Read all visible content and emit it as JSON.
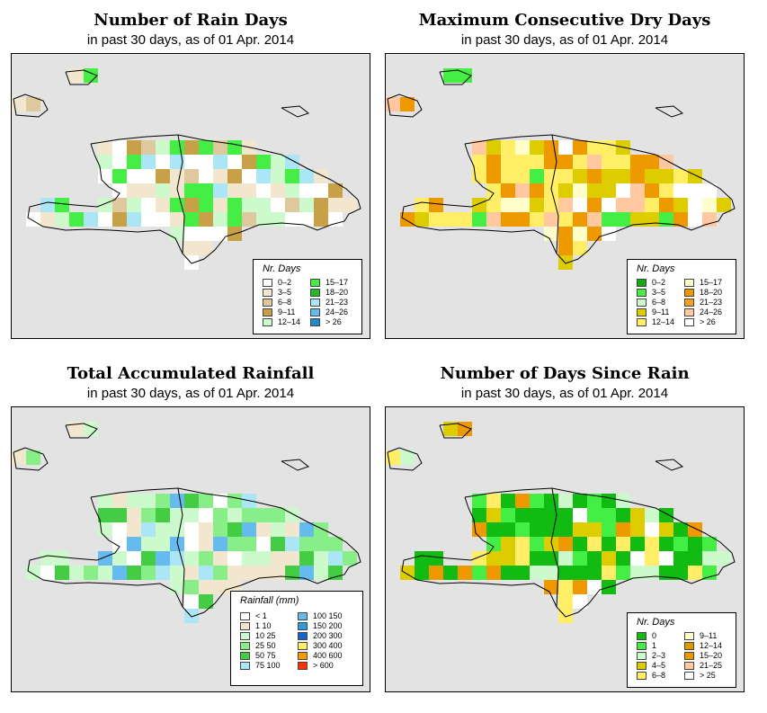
{
  "panels": [
    {
      "id": "rain-days",
      "title": "Number of Rain Days",
      "subtitle": "in past 30 days, as of  01 Apr. 2014",
      "legend": {
        "title": "Nr. Days",
        "items": [
          {
            "label": "0–2",
            "color": "#ffffff"
          },
          {
            "label": "3–5",
            "color": "#f2e6cf"
          },
          {
            "label": "6–8",
            "color": "#e0c89e"
          },
          {
            "label": "9–11",
            "color": "#c8a048"
          },
          {
            "label": "12–14",
            "color": "#ccfacc"
          },
          {
            "label": "15–17",
            "color": "#44ee44"
          },
          {
            "label": "18–20",
            "color": "#22bb22"
          },
          {
            "label": "21–23",
            "color": "#aae6f6"
          },
          {
            "label": "24–26",
            "color": "#66bbee"
          },
          {
            "label": "> 26",
            "color": "#2288cc"
          }
        ]
      }
    },
    {
      "id": "dry-days",
      "title": "Maximum Consecutive Dry Days",
      "subtitle": "in past 30 days, as of  01 Apr. 2014",
      "legend": {
        "title": "Nr. Days",
        "items": [
          {
            "label": "0–2",
            "color": "#11aa11"
          },
          {
            "label": "3–5",
            "color": "#44ee44"
          },
          {
            "label": "6–8",
            "color": "#ccfacc"
          },
          {
            "label": "9–11",
            "color": "#ddcc00"
          },
          {
            "label": "12–14",
            "color": "#ffee66"
          },
          {
            "label": "15–17",
            "color": "#ffffcc"
          },
          {
            "label": "18–20",
            "color": "#ee9900"
          },
          {
            "label": "21–23",
            "color": "#f6a020"
          },
          {
            "label": "24–26",
            "color": "#ffc8a0"
          },
          {
            "label": "> 26",
            "color": "#ffffff"
          }
        ]
      }
    },
    {
      "id": "rainfall",
      "title": "Total Accumulated Rainfall",
      "subtitle": "in past 30 days, as of  01 Apr. 2014",
      "legend": {
        "title": "Rainfall (mm)",
        "items": [
          {
            "label": "< 1",
            "color": "#ffffff"
          },
          {
            "label": "1   10",
            "color": "#f2e6cf"
          },
          {
            "label": "10   25",
            "color": "#ccfacc"
          },
          {
            "label": "25   50",
            "color": "#88ee88"
          },
          {
            "label": "50   75",
            "color": "#44cc44"
          },
          {
            "label": "75  100",
            "color": "#aae6f6"
          },
          {
            "label": "100  150",
            "color": "#66bbee"
          },
          {
            "label": "150  200",
            "color": "#3399dd"
          },
          {
            "label": "200  300",
            "color": "#1166cc"
          },
          {
            "label": "300  400",
            "color": "#ffee66"
          },
          {
            "label": "400  600",
            "color": "#ff9900"
          },
          {
            "label": "> 600",
            "color": "#ff3300"
          }
        ]
      }
    },
    {
      "id": "since-rain",
      "title": "Number of Days Since Rain",
      "subtitle": "in past 30 days, as of  01 Apr. 2014",
      "legend": {
        "title": "Nr. Days",
        "items": [
          {
            "label": "0",
            "color": "#11bb11"
          },
          {
            "label": "1",
            "color": "#44ee44"
          },
          {
            "label": "2–3",
            "color": "#ccfacc"
          },
          {
            "label": "4–5",
            "color": "#ddcc00"
          },
          {
            "label": "6–8",
            "color": "#ffee66"
          },
          {
            "label": "9–11",
            "color": "#ffffcc"
          },
          {
            "label": "12–14",
            "color": "#dd9900"
          },
          {
            "label": "15–20",
            "color": "#ee9900"
          },
          {
            "label": "21–25",
            "color": "#ffc8a0"
          },
          {
            "label": "> 25",
            "color": "#ffffff"
          }
        ]
      }
    }
  ]
}
